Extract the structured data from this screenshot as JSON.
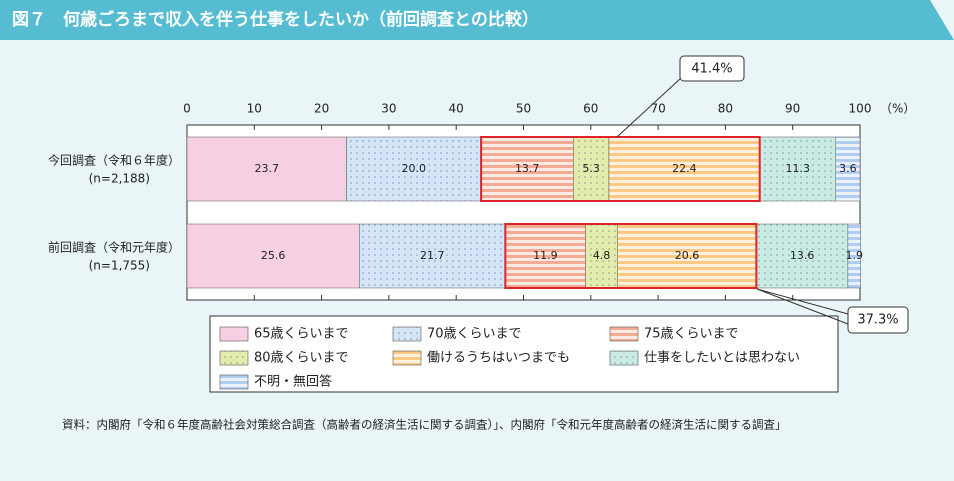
{
  "chart_data": {
    "type": "stacked-bar-h",
    "title": "図７　何歳ごろまで収入を伴う仕事をしたいか（前回調査との比較）",
    "categories": [
      "今回調査（令和６年度）",
      "前回調査（令和元年度）"
    ],
    "category_notes": [
      "(n=2,188)",
      "(n=1,755)"
    ],
    "xlim": [
      0,
      100
    ],
    "xticks": [
      0,
      10,
      20,
      30,
      40,
      50,
      60,
      70,
      80,
      90,
      100
    ],
    "x_unit": "（%）",
    "series": [
      {
        "name": "65歳くらいまで",
        "color": "#f6cfe2",
        "pattern": "none",
        "values": [
          23.7,
          25.6
        ]
      },
      {
        "name": "70歳くらいまで",
        "color": "#d3e5f6",
        "pattern": "dots",
        "values": [
          20.0,
          21.7
        ],
        "value_labels": [
          "20.0",
          "21.7"
        ]
      },
      {
        "name": "75歳くらいまで",
        "color": "#f5ab93",
        "pattern": "hstripes",
        "values": [
          13.7,
          11.9
        ]
      },
      {
        "name": "80歳くらいまで",
        "color": "#e3ecac",
        "pattern": "dots",
        "values": [
          5.3,
          4.8
        ]
      },
      {
        "name": "働けるうちはいつまでも",
        "color": "#fcc982",
        "pattern": "hstripes",
        "values": [
          22.4,
          20.6
        ]
      },
      {
        "name": "仕事をしたいとは思わない",
        "color": "#c9ebe4",
        "pattern": "dots",
        "values": [
          11.3,
          13.6
        ]
      },
      {
        "name": "不明・無回答",
        "color": "#aecdf0",
        "pattern": "hstripes",
        "values": [
          3.6,
          1.9
        ]
      }
    ],
    "highlight_series": [
      2,
      4
    ],
    "highlight_color": "#e0232a",
    "annotations": [
      "41.4%",
      "37.3%"
    ],
    "source": "資料：内閣府「令和６年度高齢社会対策総合調査（高齢者の経済生活に関する調査）」、内閣府「令和元年度高齢者の経済生活に関する調査」"
  }
}
